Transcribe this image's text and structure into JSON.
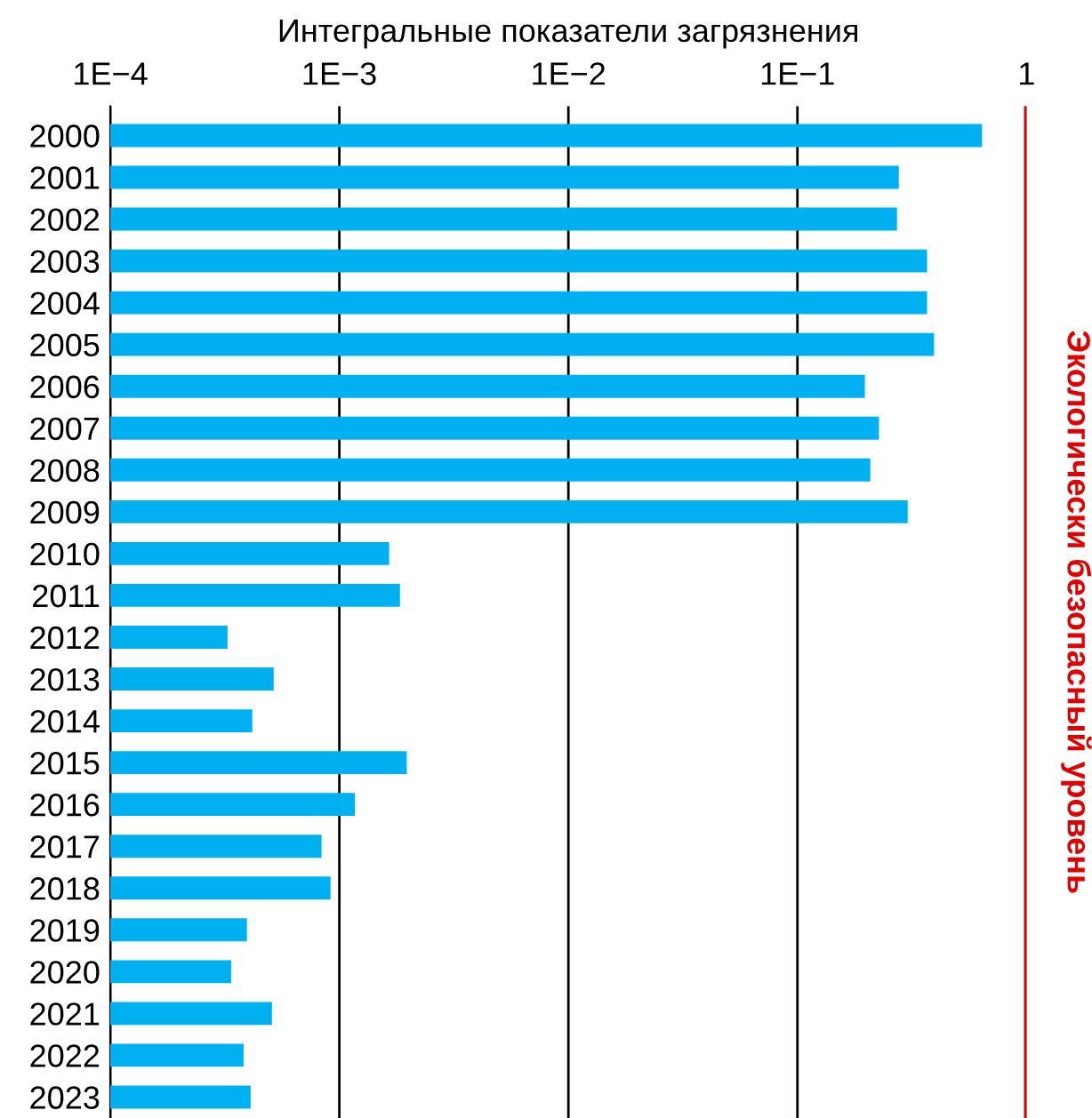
{
  "chart_data": {
    "type": "bar",
    "orientation": "horizontal",
    "xlabel": "Интегральные показатели загрязнения",
    "categories": [
      "2000",
      "2001",
      "2002",
      "2003",
      "2004",
      "2005",
      "2006",
      "2007",
      "2008",
      "2009",
      "2010",
      "2011",
      "2012",
      "2013",
      "2014",
      "2015",
      "2016",
      "2017",
      "2018",
      "2019",
      "2020",
      "2021",
      "2022",
      "2023"
    ],
    "values": [
      0.64,
      0.277,
      0.272,
      0.368,
      0.368,
      0.395,
      0.197,
      0.227,
      0.208,
      0.303,
      0.00165,
      0.00184,
      0.000325,
      0.000517,
      0.000417,
      0.00197,
      0.00117,
      0.000836,
      0.000915,
      0.000395,
      0.000337,
      0.000508,
      0.000382,
      0.00041
    ],
    "color": "#00b0f0",
    "log": "x",
    "xlim": [
      0.0001,
      1
    ],
    "xticks": [
      {
        "value": 0.0001,
        "label": "1E−4"
      },
      {
        "value": 0.001,
        "label": "1E−3"
      },
      {
        "value": 0.01,
        "label": "1E−2"
      },
      {
        "value": 0.1,
        "label": "1E−1"
      },
      1
    ],
    "grid": "x",
    "ref_lines": [
      {
        "axis": "x",
        "value": 1,
        "label": "Экологически безопасный уровень",
        "color": "#e00000"
      }
    ]
  }
}
